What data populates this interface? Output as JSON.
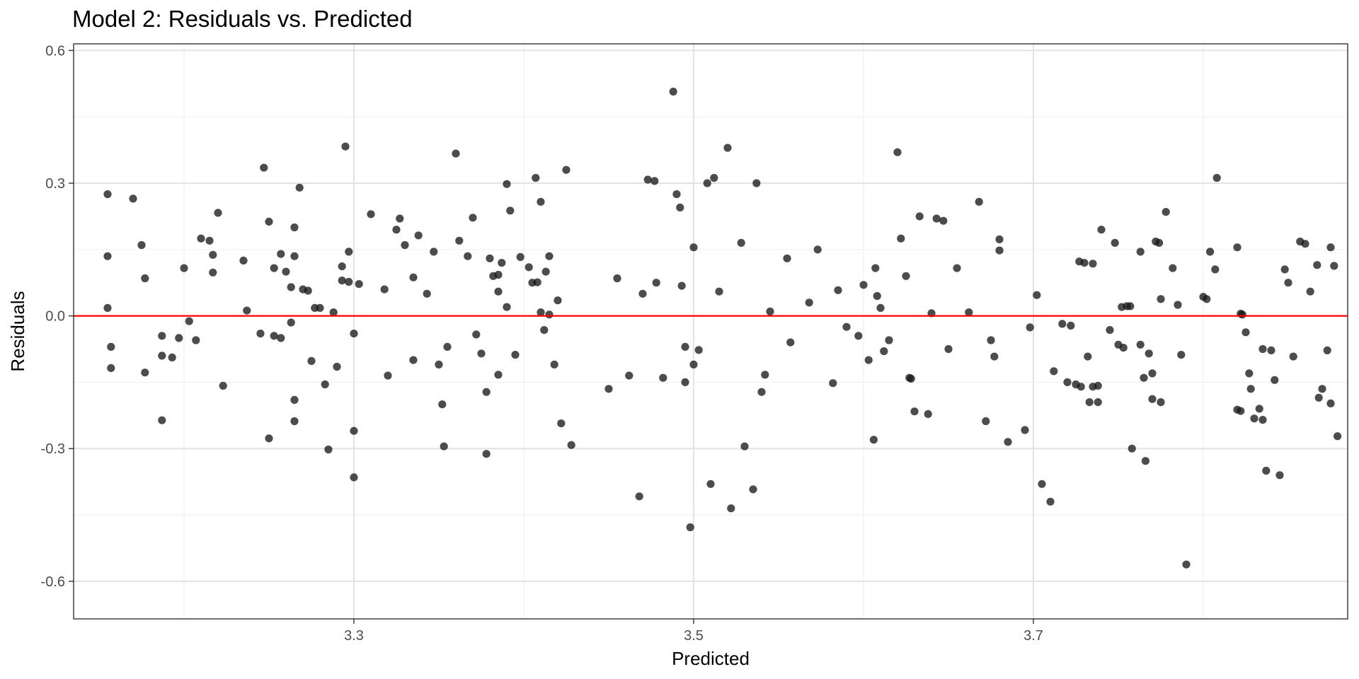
{
  "chart_data": {
    "type": "scatter",
    "title": "Model 2: Residuals vs. Predicted",
    "xlabel": "Predicted",
    "ylabel": "Residuals",
    "xlim": [
      3.135,
      3.885
    ],
    "ylim": [
      -0.685,
      0.615
    ],
    "x_ticks": [
      3.3,
      3.5,
      3.7
    ],
    "x_tick_labels": [
      "3.3",
      "3.5",
      "3.7"
    ],
    "y_ticks": [
      -0.6,
      -0.3,
      0.0,
      0.3,
      0.6
    ],
    "y_tick_labels": [
      "-0.6",
      "-0.3",
      "0.0",
      "0.3",
      "0.6"
    ],
    "grid": true,
    "reference_line": {
      "y": 0,
      "color": "#ff0000"
    },
    "colors": {
      "point": "#1a1a1a",
      "grid_major": "#e3e3e3",
      "grid_minor": "#f1f1f1",
      "panel_border": "#333333"
    },
    "points": [
      [
        3.155,
        0.275
      ],
      [
        3.155,
        0.135
      ],
      [
        3.155,
        0.018
      ],
      [
        3.157,
        -0.07
      ],
      [
        3.157,
        -0.118
      ],
      [
        3.17,
        0.265
      ],
      [
        3.175,
        0.16
      ],
      [
        3.177,
        0.085
      ],
      [
        3.177,
        -0.128
      ],
      [
        3.187,
        -0.045
      ],
      [
        3.187,
        -0.09
      ],
      [
        3.187,
        -0.236
      ],
      [
        3.193,
        -0.094
      ],
      [
        3.197,
        -0.05
      ],
      [
        3.2,
        0.108
      ],
      [
        3.203,
        -0.012
      ],
      [
        3.207,
        -0.055
      ],
      [
        3.21,
        0.175
      ],
      [
        3.215,
        0.17
      ],
      [
        3.217,
        0.138
      ],
      [
        3.217,
        0.098
      ],
      [
        3.22,
        0.233
      ],
      [
        3.223,
        -0.158
      ],
      [
        3.235,
        0.125
      ],
      [
        3.237,
        0.012
      ],
      [
        3.245,
        -0.04
      ],
      [
        3.247,
        0.335
      ],
      [
        3.25,
        0.213
      ],
      [
        3.25,
        -0.277
      ],
      [
        3.253,
        -0.045
      ],
      [
        3.253,
        0.108
      ],
      [
        3.257,
        0.14
      ],
      [
        3.257,
        -0.05
      ],
      [
        3.26,
        0.1
      ],
      [
        3.263,
        0.065
      ],
      [
        3.263,
        -0.015
      ],
      [
        3.265,
        0.2
      ],
      [
        3.265,
        0.135
      ],
      [
        3.265,
        -0.19
      ],
      [
        3.265,
        -0.238
      ],
      [
        3.268,
        0.29
      ],
      [
        3.27,
        0.06
      ],
      [
        3.273,
        0.057
      ],
      [
        3.275,
        -0.102
      ],
      [
        3.277,
        0.018
      ],
      [
        3.28,
        0.018
      ],
      [
        3.283,
        -0.155
      ],
      [
        3.285,
        -0.302
      ],
      [
        3.288,
        0.008
      ],
      [
        3.29,
        -0.115
      ],
      [
        3.293,
        0.08
      ],
      [
        3.293,
        0.112
      ],
      [
        3.295,
        0.383
      ],
      [
        3.297,
        0.145
      ],
      [
        3.297,
        0.077
      ],
      [
        3.3,
        -0.04
      ],
      [
        3.3,
        -0.26
      ],
      [
        3.3,
        -0.365
      ],
      [
        3.303,
        0.072
      ],
      [
        3.31,
        0.23
      ],
      [
        3.318,
        0.06
      ],
      [
        3.32,
        -0.135
      ],
      [
        3.325,
        0.195
      ],
      [
        3.327,
        0.22
      ],
      [
        3.33,
        0.16
      ],
      [
        3.335,
        -0.1
      ],
      [
        3.335,
        0.087
      ],
      [
        3.338,
        0.182
      ],
      [
        3.343,
        0.05
      ],
      [
        3.347,
        0.145
      ],
      [
        3.35,
        -0.11
      ],
      [
        3.352,
        -0.2
      ],
      [
        3.353,
        -0.295
      ],
      [
        3.355,
        -0.07
      ],
      [
        3.36,
        0.367
      ],
      [
        3.362,
        0.17
      ],
      [
        3.367,
        0.135
      ],
      [
        3.372,
        -0.042
      ],
      [
        3.37,
        0.222
      ],
      [
        3.375,
        -0.085
      ],
      [
        3.378,
        -0.172
      ],
      [
        3.378,
        -0.312
      ],
      [
        3.38,
        0.13
      ],
      [
        3.382,
        0.09
      ],
      [
        3.385,
        0.093
      ],
      [
        3.385,
        0.055
      ],
      [
        3.385,
        -0.133
      ],
      [
        3.387,
        0.12
      ],
      [
        3.39,
        0.298
      ],
      [
        3.39,
        0.02
      ],
      [
        3.392,
        0.238
      ],
      [
        3.395,
        -0.088
      ],
      [
        3.398,
        0.133
      ],
      [
        3.403,
        0.11
      ],
      [
        3.405,
        0.075
      ],
      [
        3.407,
        0.312
      ],
      [
        3.408,
        0.076
      ],
      [
        3.41,
        0.258
      ],
      [
        3.41,
        0.008
      ],
      [
        3.412,
        -0.032
      ],
      [
        3.413,
        0.1
      ],
      [
        3.415,
        0.135
      ],
      [
        3.415,
        0.003
      ],
      [
        3.418,
        -0.11
      ],
      [
        3.42,
        0.035
      ],
      [
        3.422,
        -0.243
      ],
      [
        3.425,
        0.33
      ],
      [
        3.428,
        -0.292
      ],
      [
        3.45,
        -0.165
      ],
      [
        3.455,
        0.085
      ],
      [
        3.462,
        -0.135
      ],
      [
        3.468,
        -0.408
      ],
      [
        3.47,
        0.05
      ],
      [
        3.473,
        0.308
      ],
      [
        3.477,
        0.305
      ],
      [
        3.478,
        0.075
      ],
      [
        3.482,
        -0.14
      ],
      [
        3.488,
        0.507
      ],
      [
        3.49,
        0.275
      ],
      [
        3.492,
        0.245
      ],
      [
        3.493,
        0.068
      ],
      [
        3.495,
        -0.07
      ],
      [
        3.495,
        -0.15
      ],
      [
        3.498,
        -0.478
      ],
      [
        3.5,
        -0.11
      ],
      [
        3.503,
        -0.077
      ],
      [
        3.5,
        0.155
      ],
      [
        3.508,
        0.3
      ],
      [
        3.51,
        -0.38
      ],
      [
        3.512,
        0.312
      ],
      [
        3.515,
        0.055
      ],
      [
        3.52,
        0.38
      ],
      [
        3.522,
        -0.435
      ],
      [
        3.528,
        0.165
      ],
      [
        3.53,
        -0.295
      ],
      [
        3.535,
        -0.392
      ],
      [
        3.537,
        0.3
      ],
      [
        3.54,
        -0.172
      ],
      [
        3.542,
        -0.133
      ],
      [
        3.545,
        0.01
      ],
      [
        3.555,
        0.13
      ],
      [
        3.557,
        -0.06
      ],
      [
        3.568,
        0.03
      ],
      [
        3.573,
        0.15
      ],
      [
        3.582,
        -0.152
      ],
      [
        3.585,
        0.058
      ],
      [
        3.59,
        -0.025
      ],
      [
        3.597,
        -0.045
      ],
      [
        3.6,
        0.07
      ],
      [
        3.603,
        -0.1
      ],
      [
        3.606,
        -0.28
      ],
      [
        3.607,
        0.108
      ],
      [
        3.608,
        0.045
      ],
      [
        3.61,
        0.018
      ],
      [
        3.612,
        -0.08
      ],
      [
        3.615,
        -0.055
      ],
      [
        3.62,
        0.37
      ],
      [
        3.622,
        0.175
      ],
      [
        3.625,
        0.09
      ],
      [
        3.627,
        -0.14
      ],
      [
        3.628,
        -0.142
      ],
      [
        3.63,
        -0.216
      ],
      [
        3.633,
        0.225
      ],
      [
        3.638,
        -0.222
      ],
      [
        3.64,
        0.006
      ],
      [
        3.643,
        0.22
      ],
      [
        3.647,
        0.215
      ],
      [
        3.65,
        -0.075
      ],
      [
        3.655,
        0.108
      ],
      [
        3.662,
        0.008
      ],
      [
        3.668,
        0.258
      ],
      [
        3.672,
        -0.238
      ],
      [
        3.675,
        -0.055
      ],
      [
        3.677,
        -0.092
      ],
      [
        3.68,
        0.148
      ],
      [
        3.68,
        0.173
      ],
      [
        3.685,
        -0.285
      ],
      [
        3.695,
        -0.258
      ],
      [
        3.698,
        -0.026
      ],
      [
        3.702,
        0.047
      ],
      [
        3.705,
        -0.38
      ],
      [
        3.71,
        -0.42
      ],
      [
        3.712,
        -0.125
      ],
      [
        3.717,
        -0.018
      ],
      [
        3.72,
        -0.15
      ],
      [
        3.722,
        -0.022
      ],
      [
        3.725,
        -0.155
      ],
      [
        3.727,
        0.123
      ],
      [
        3.728,
        -0.16
      ],
      [
        3.73,
        0.12
      ],
      [
        3.732,
        -0.092
      ],
      [
        3.733,
        -0.195
      ],
      [
        3.735,
        0.118
      ],
      [
        3.735,
        -0.16
      ],
      [
        3.738,
        -0.195
      ],
      [
        3.738,
        -0.158
      ],
      [
        3.74,
        0.195
      ],
      [
        3.745,
        -0.032
      ],
      [
        3.748,
        0.165
      ],
      [
        3.75,
        -0.065
      ],
      [
        3.752,
        0.02
      ],
      [
        3.753,
        -0.072
      ],
      [
        3.755,
        0.022
      ],
      [
        3.757,
        0.022
      ],
      [
        3.758,
        -0.3
      ],
      [
        3.763,
        -0.065
      ],
      [
        3.763,
        0.145
      ],
      [
        3.765,
        -0.14
      ],
      [
        3.766,
        -0.328
      ],
      [
        3.768,
        -0.085
      ],
      [
        3.77,
        -0.188
      ],
      [
        3.77,
        -0.13
      ],
      [
        3.772,
        0.168
      ],
      [
        3.774,
        0.165
      ],
      [
        3.775,
        0.038
      ],
      [
        3.775,
        -0.195
      ],
      [
        3.778,
        0.235
      ],
      [
        3.782,
        0.108
      ],
      [
        3.785,
        0.025
      ],
      [
        3.787,
        -0.088
      ],
      [
        3.79,
        -0.562
      ],
      [
        3.8,
        0.043
      ],
      [
        3.802,
        0.038
      ],
      [
        3.804,
        0.145
      ],
      [
        3.807,
        0.105
      ],
      [
        3.808,
        0.312
      ],
      [
        3.82,
        0.155
      ],
      [
        3.822,
        0.005
      ],
      [
        3.823,
        0.003
      ],
      [
        3.82,
        -0.212
      ],
      [
        3.822,
        -0.215
      ],
      [
        3.825,
        -0.037
      ],
      [
        3.827,
        -0.13
      ],
      [
        3.828,
        -0.165
      ],
      [
        3.83,
        -0.232
      ],
      [
        3.833,
        -0.21
      ],
      [
        3.835,
        -0.235
      ],
      [
        3.835,
        -0.075
      ],
      [
        3.837,
        -0.35
      ],
      [
        3.84,
        -0.078
      ],
      [
        3.842,
        -0.145
      ],
      [
        3.845,
        -0.36
      ],
      [
        3.848,
        0.105
      ],
      [
        3.85,
        0.075
      ],
      [
        3.853,
        -0.092
      ],
      [
        3.857,
        0.168
      ],
      [
        3.86,
        0.163
      ],
      [
        3.863,
        0.055
      ],
      [
        3.867,
        0.115
      ],
      [
        3.868,
        -0.185
      ],
      [
        3.87,
        -0.165
      ],
      [
        3.873,
        -0.078
      ],
      [
        3.875,
        -0.198
      ],
      [
        3.875,
        0.155
      ],
      [
        3.877,
        0.113
      ],
      [
        3.879,
        -0.272
      ]
    ]
  }
}
